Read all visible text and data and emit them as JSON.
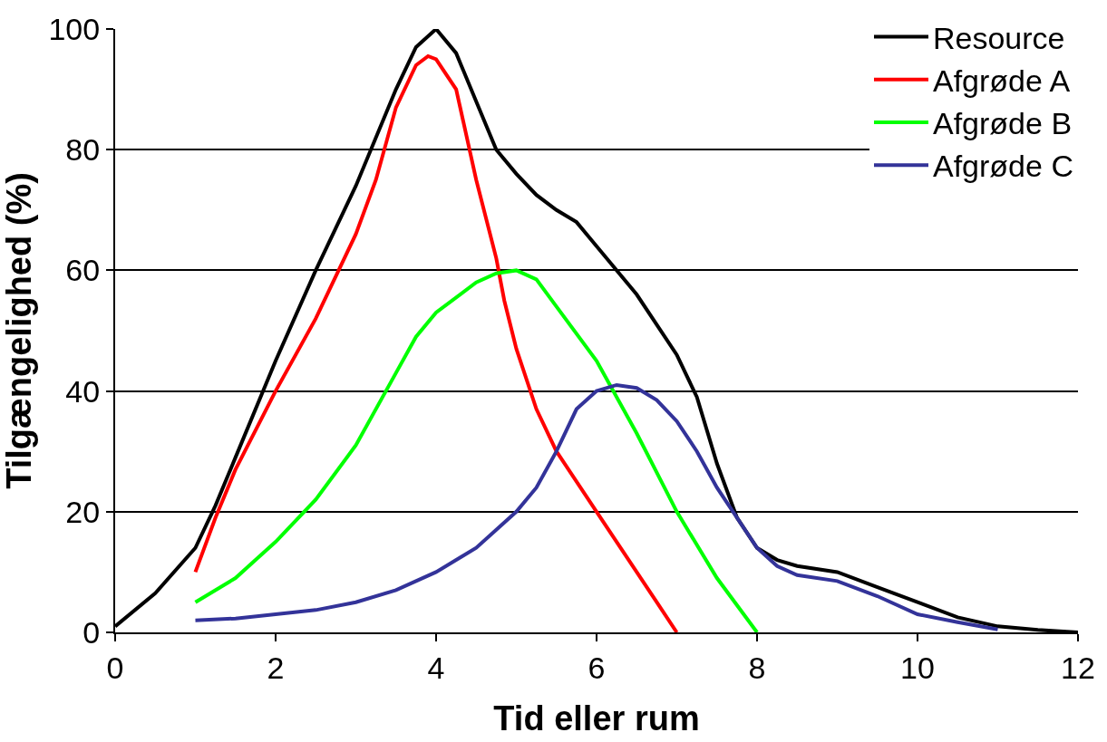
{
  "chart_data": {
    "type": "line",
    "xlabel": "Tid eller rum",
    "ylabel": "Tilgængelighed (%)",
    "xlim": [
      0,
      12
    ],
    "xticks": [
      0,
      2,
      4,
      6,
      8,
      10,
      12
    ],
    "ylim": [
      0,
      100
    ],
    "yticks": [
      0,
      20,
      40,
      60,
      80,
      100
    ],
    "grid": "y",
    "legend": "top right",
    "marker": "none",
    "line_style": "solid",
    "series": [
      {
        "name": "Resource",
        "color": "#000000",
        "x": [
          0,
          0.5,
          1,
          1.25,
          1.5,
          2,
          2.5,
          3,
          3.5,
          3.75,
          4,
          4.25,
          4.5,
          4.75,
          5,
          5.25,
          5.5,
          5.75,
          6,
          6.5,
          7,
          7.25,
          7.5,
          7.75,
          8,
          8.25,
          8.5,
          9,
          9.5,
          10,
          10.5,
          11,
          11.5,
          12
        ],
        "values": [
          1,
          6.5,
          14,
          21,
          29,
          45,
          60,
          74,
          90,
          97,
          100,
          96,
          88,
          80,
          76,
          72.5,
          70,
          68,
          64,
          56,
          46,
          39,
          28,
          19,
          14,
          12,
          11,
          10,
          7.5,
          5,
          2.5,
          1,
          0.4,
          0
        ]
      },
      {
        "name": "Afgrøde A",
        "color": "#ff0000",
        "x": [
          1,
          1.25,
          1.5,
          2,
          2.5,
          3,
          3.25,
          3.5,
          3.75,
          3.9,
          4,
          4.25,
          4.5,
          4.75,
          4.85,
          5,
          5.25,
          5.5,
          6,
          6.5,
          6.75,
          7
        ],
        "values": [
          10,
          19,
          27,
          40,
          52,
          66,
          75,
          87,
          94,
          95.5,
          95,
          90,
          75,
          62,
          55,
          47,
          37,
          30,
          20,
          10,
          5,
          0
        ]
      },
      {
        "name": "Afgrøde B",
        "color": "#00ff00",
        "x": [
          1,
          1.5,
          1.75,
          2,
          2.5,
          3,
          3.5,
          3.75,
          4,
          4.5,
          4.75,
          5,
          5.25,
          5.5,
          6,
          6.5,
          7,
          7.5,
          8
        ],
        "values": [
          5,
          9,
          12,
          15,
          22,
          31,
          43,
          49,
          53,
          58,
          59.5,
          60,
          58.5,
          54,
          45,
          33,
          20,
          9,
          0
        ]
      },
      {
        "name": "Afgrøde C",
        "color": "#333399",
        "x": [
          1,
          1.5,
          2,
          2.5,
          3,
          3.5,
          4,
          4.5,
          4.75,
          5,
          5.25,
          5.5,
          5.75,
          6,
          6.25,
          6.5,
          6.75,
          7,
          7.25,
          7.5,
          8,
          8.25,
          8.5,
          9,
          9.5,
          10,
          10.5,
          11
        ],
        "values": [
          2,
          2.3,
          3,
          3.7,
          5,
          7,
          10,
          14,
          17,
          20,
          24,
          30,
          37,
          40,
          41,
          40.5,
          38.5,
          35,
          30,
          24,
          14,
          11,
          9.5,
          8.5,
          6,
          3,
          1.7,
          0.5
        ]
      }
    ]
  }
}
